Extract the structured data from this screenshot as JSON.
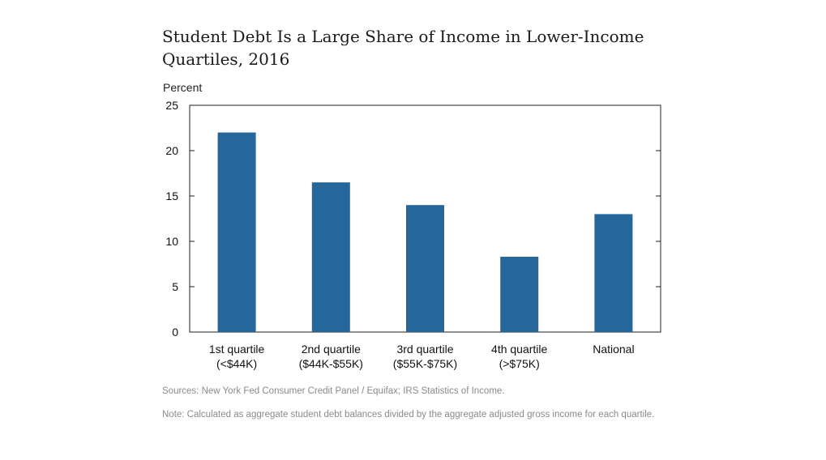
{
  "chart_data": {
    "type": "bar",
    "title": "Student Debt Is a Large Share of Income in Lower-Income Quartiles, 2016",
    "ylabel": "Percent",
    "xlabel": "",
    "ylim": [
      0,
      25
    ],
    "yticks": [
      0,
      5,
      10,
      15,
      20,
      25
    ],
    "categories": [
      [
        "1st quartile",
        "(<$44K)"
      ],
      [
        "2nd quartile",
        "($44K-$55K)"
      ],
      [
        "3rd quartile",
        "($55K-$75K)"
      ],
      [
        "4th quartile",
        "(>$75K)"
      ],
      [
        "National"
      ]
    ],
    "values": [
      22.0,
      16.5,
      14.0,
      8.3,
      13.0
    ],
    "bar_color": "#25679a",
    "grid": false
  },
  "footer": {
    "sources": "Sources:  New York Fed Consumer Credit Panel / Equifax; IRS Statistics of Income.",
    "note": "Note: Calculated as aggregate student debt balances divided by the aggregate adjusted gross income for each quartile."
  }
}
